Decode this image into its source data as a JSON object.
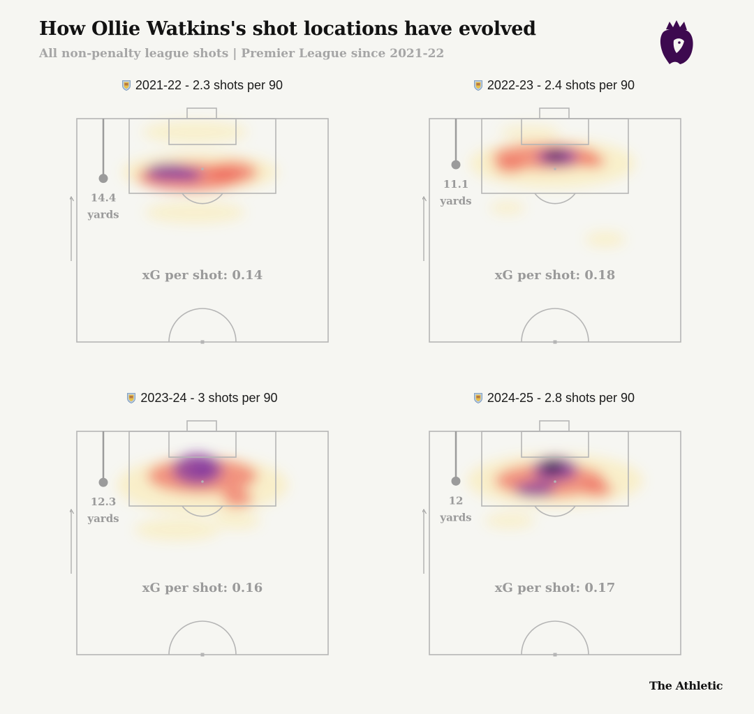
{
  "header": {
    "title": "How Ollie Watkins's shot locations have evolved",
    "subtitle": "All non-penalty league shots | Premier League since 2021-22"
  },
  "credit": "The Athletic",
  "icons": {
    "league_logo": "premier-league-lion-logo",
    "club_crest": "aston-villa-crest"
  },
  "colors": {
    "background": "#f6f6f2",
    "pitch_lines": "#b5b5b5",
    "annotation_text": "#9a9a9a",
    "heat_low": "#fbe9a6",
    "heat_mid": "#ee5c4e",
    "heat_high": "#7a2a9a",
    "heat_peak": "#1a1040"
  },
  "chart_data": [
    {
      "type": "heatmap",
      "season": "2021-22",
      "title": "2021-22 - 2.3 shots per 90",
      "shots_per_90": 2.3,
      "avg_distance_value": "14.4",
      "avg_distance_unit": "yards",
      "avg_distance_yards": 14.4,
      "xg_per_shot_text": "xG per shot: 0.14",
      "xg_per_shot": 0.14,
      "attack_label": "Attack",
      "hotspots": [
        {
          "x": 0.49,
          "y": 0.24,
          "w": 0.62,
          "h": 0.18,
          "intensity": 0.22
        },
        {
          "x": 0.45,
          "y": 0.26,
          "w": 0.42,
          "h": 0.13,
          "intensity": 0.45
        },
        {
          "x": 0.62,
          "y": 0.24,
          "w": 0.2,
          "h": 0.1,
          "intensity": 0.42
        },
        {
          "x": 0.36,
          "y": 0.24,
          "w": 0.17,
          "h": 0.08,
          "intensity": 0.62
        },
        {
          "x": 0.44,
          "y": 0.25,
          "w": 0.12,
          "h": 0.06,
          "intensity": 0.66
        },
        {
          "x": 0.47,
          "y": 0.06,
          "w": 0.42,
          "h": 0.1,
          "intensity": 0.12
        },
        {
          "x": 0.47,
          "y": 0.42,
          "w": 0.4,
          "h": 0.1,
          "intensity": 0.1
        }
      ]
    },
    {
      "type": "heatmap",
      "season": "2022-23",
      "title": "2022-23 - 2.4 shots per 90",
      "shots_per_90": 2.4,
      "avg_distance_value": "11.1",
      "avg_distance_unit": "yards",
      "avg_distance_yards": 11.1,
      "xg_per_shot_text": "xG per shot: 0.18",
      "xg_per_shot": 0.18,
      "attack_label": "Attack",
      "hotspots": [
        {
          "x": 0.49,
          "y": 0.2,
          "w": 0.66,
          "h": 0.22,
          "intensity": 0.2
        },
        {
          "x": 0.46,
          "y": 0.17,
          "w": 0.42,
          "h": 0.12,
          "intensity": 0.4
        },
        {
          "x": 0.51,
          "y": 0.17,
          "w": 0.16,
          "h": 0.08,
          "intensity": 0.72
        },
        {
          "x": 0.5,
          "y": 0.165,
          "w": 0.07,
          "h": 0.04,
          "intensity": 1.0
        },
        {
          "x": 0.32,
          "y": 0.21,
          "w": 0.12,
          "h": 0.07,
          "intensity": 0.38
        },
        {
          "x": 0.65,
          "y": 0.19,
          "w": 0.1,
          "h": 0.06,
          "intensity": 0.38
        },
        {
          "x": 0.31,
          "y": 0.4,
          "w": 0.14,
          "h": 0.06,
          "intensity": 0.1
        },
        {
          "x": 0.7,
          "y": 0.54,
          "w": 0.16,
          "h": 0.07,
          "intensity": 0.12
        },
        {
          "x": 0.4,
          "y": 0.06,
          "w": 0.24,
          "h": 0.06,
          "intensity": 0.15
        }
      ]
    },
    {
      "type": "heatmap",
      "season": "2023-24",
      "title": "2023-24 - 3 shots per 90",
      "shots_per_90": 3,
      "avg_distance_value": "12.3",
      "avg_distance_unit": "yards",
      "avg_distance_yards": 12.3,
      "xg_per_shot_text": "xG per shot: 0.16",
      "xg_per_shot": 0.16,
      "attack_label": "Attack",
      "hotspots": [
        {
          "x": 0.5,
          "y": 0.24,
          "w": 0.68,
          "h": 0.26,
          "intensity": 0.22
        },
        {
          "x": 0.5,
          "y": 0.2,
          "w": 0.44,
          "h": 0.16,
          "intensity": 0.42
        },
        {
          "x": 0.48,
          "y": 0.17,
          "w": 0.2,
          "h": 0.14,
          "intensity": 0.6
        },
        {
          "x": 0.5,
          "y": 0.17,
          "w": 0.09,
          "h": 0.06,
          "intensity": 0.82
        },
        {
          "x": 0.4,
          "y": 0.44,
          "w": 0.34,
          "h": 0.1,
          "intensity": 0.12
        },
        {
          "x": 0.64,
          "y": 0.4,
          "w": 0.18,
          "h": 0.08,
          "intensity": 0.1
        },
        {
          "x": 0.64,
          "y": 0.3,
          "w": 0.12,
          "h": 0.08,
          "intensity": 0.42
        }
      ]
    },
    {
      "type": "heatmap",
      "season": "2024-25",
      "title": "2024-25 - 2.8 shots per 90",
      "shots_per_90": 2.8,
      "avg_distance_value": "12",
      "avg_distance_unit": "yards",
      "avg_distance_yards": 12,
      "xg_per_shot_text": "xG per shot: 0.17",
      "xg_per_shot": 0.17,
      "attack_label": "Attack",
      "hotspots": [
        {
          "x": 0.5,
          "y": 0.22,
          "w": 0.7,
          "h": 0.24,
          "intensity": 0.22
        },
        {
          "x": 0.48,
          "y": 0.22,
          "w": 0.44,
          "h": 0.15,
          "intensity": 0.42
        },
        {
          "x": 0.5,
          "y": 0.17,
          "w": 0.18,
          "h": 0.11,
          "intensity": 0.65
        },
        {
          "x": 0.49,
          "y": 0.16,
          "w": 0.09,
          "h": 0.06,
          "intensity": 0.85
        },
        {
          "x": 0.42,
          "y": 0.26,
          "w": 0.16,
          "h": 0.07,
          "intensity": 0.62
        },
        {
          "x": 0.32,
          "y": 0.4,
          "w": 0.2,
          "h": 0.07,
          "intensity": 0.1
        },
        {
          "x": 0.67,
          "y": 0.26,
          "w": 0.12,
          "h": 0.07,
          "intensity": 0.35
        }
      ]
    }
  ]
}
